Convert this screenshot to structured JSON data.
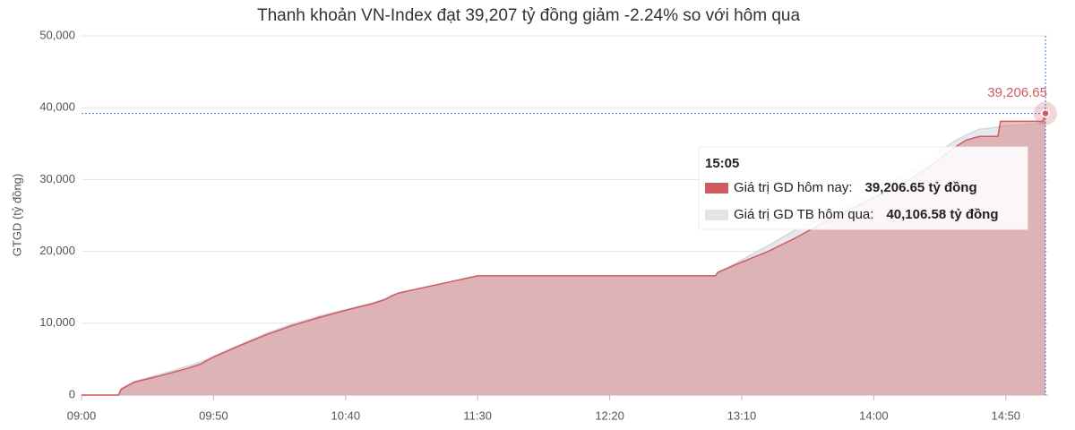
{
  "chart_data": {
    "type": "area",
    "title": "Thanh khoản VN-Index đạt 39,207 tỷ đồng giảm -2.24% so với hôm qua",
    "y_label": "GTGD (tỷ đồng)",
    "x": [
      "09:00",
      "09:14",
      "09:15",
      "09:20",
      "09:30",
      "09:40",
      "09:45",
      "09:50",
      "10:00",
      "10:10",
      "10:20",
      "10:30",
      "10:40",
      "10:50",
      "10:55",
      "10:57",
      "11:00",
      "11:10",
      "11:20",
      "11:30",
      "13:00",
      "13:01",
      "13:10",
      "13:20",
      "13:30",
      "13:40",
      "13:50",
      "14:00",
      "14:10",
      "14:20",
      "14:30",
      "14:35",
      "14:40",
      "14:47",
      "14:48",
      "14:50",
      "15:00",
      "15:04",
      "15:05"
    ],
    "series": [
      {
        "name": "Giá trị GD TB hôm qua:",
        "color": "#e3e5eb",
        "values": [
          0,
          0,
          900,
          1900,
          2900,
          4000,
          4600,
          5400,
          7000,
          8600,
          9900,
          11000,
          11900,
          12800,
          13400,
          13800,
          14200,
          15000,
          15800,
          16600,
          16600,
          17000,
          18800,
          20800,
          22900,
          24500,
          26300,
          28200,
          30200,
          32600,
          35200,
          36200,
          37000,
          37300,
          37400,
          37500,
          37700,
          37900,
          40106.58
        ]
      },
      {
        "name": "Giá trị GD hôm nay:",
        "color": "#cf5b60",
        "values": [
          0,
          0,
          800,
          1800,
          2700,
          3700,
          4300,
          5300,
          6900,
          8400,
          9700,
          10800,
          11800,
          12700,
          13300,
          13700,
          14200,
          15000,
          15800,
          16600,
          16600,
          17100,
          18500,
          20000,
          21800,
          23800,
          25600,
          27500,
          29200,
          31500,
          34300,
          35500,
          36000,
          36000,
          38100,
          38100,
          38100,
          38100,
          39206.65
        ]
      }
    ],
    "xlim": [
      "09:00",
      "15:05"
    ],
    "xticks": [
      "09:00",
      "09:50",
      "10:40",
      "11:30",
      "12:20",
      "13:10",
      "14:00",
      "14:50"
    ],
    "ylim": [
      0,
      50000
    ],
    "yticks": [
      0,
      {
        "value": 10000,
        "label": "10,000"
      },
      {
        "value": 20000,
        "label": "20,000"
      },
      {
        "value": 30000,
        "label": "30,000"
      },
      {
        "value": 40000,
        "label": "40,000"
      },
      {
        "value": 50000,
        "label": "50,000"
      }
    ],
    "grid": true,
    "last_value_label": "39,206.65",
    "tooltip": {
      "x": "15:05",
      "value_labels": [
        "40,106.58 tỷ đồng",
        "39,206.65 tỷ đồng"
      ]
    }
  }
}
